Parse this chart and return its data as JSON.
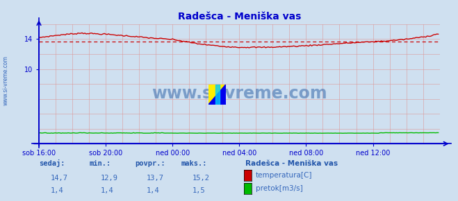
{
  "title": "Radešca - Meniška vas",
  "bg_color": "#cfe0f0",
  "plot_bg_color": "#cfe0f0",
  "x_labels": [
    "sob 16:00",
    "sob 20:00",
    "ned 00:00",
    "ned 04:00",
    "ned 08:00",
    "ned 12:00"
  ],
  "x_ticks": [
    0,
    48,
    96,
    144,
    192,
    240
  ],
  "x_max": 288,
  "ylim": [
    0,
    16
  ],
  "yticks": [
    10,
    14
  ],
  "avg_line": 13.7,
  "temp_color": "#cc0000",
  "flow_color": "#00bb00",
  "axis_color": "#0000cc",
  "grid_color_v": "#dd9999",
  "grid_color_h": "#dd9999",
  "avg_line_color": "#cc0000",
  "watermark_text": "www.si-vreme.com",
  "watermark_color": "#3366aa",
  "legend_title": "Radešca - Meniška vas",
  "legend_items": [
    {
      "label": "temperatura[C]",
      "color": "#cc0000"
    },
    {
      "label": "pretok[m3/s]",
      "color": "#00bb00"
    }
  ],
  "table_headers": [
    "sedaj:",
    "min.:",
    "povpr.:",
    "maks.:"
  ],
  "table_rows": [
    [
      "14,7",
      "12,9",
      "13,7",
      "15,2"
    ],
    [
      "1,4",
      "1,4",
      "1,4",
      "1,5"
    ]
  ],
  "sidebar_text": "www.si-vreme.com",
  "sidebar_color": "#3366bb",
  "temp_keypoints_x": [
    0,
    15,
    30,
    48,
    65,
    80,
    96,
    115,
    130,
    144,
    165,
    185,
    200,
    216,
    230,
    250,
    265,
    280,
    287
  ],
  "temp_keypoints_y": [
    14.2,
    14.55,
    14.8,
    14.65,
    14.4,
    14.15,
    13.95,
    13.35,
    13.05,
    12.9,
    12.9,
    13.05,
    13.2,
    13.4,
    13.55,
    13.75,
    14.0,
    14.4,
    14.7
  ],
  "flow_value": 1.4,
  "n_points": 288
}
